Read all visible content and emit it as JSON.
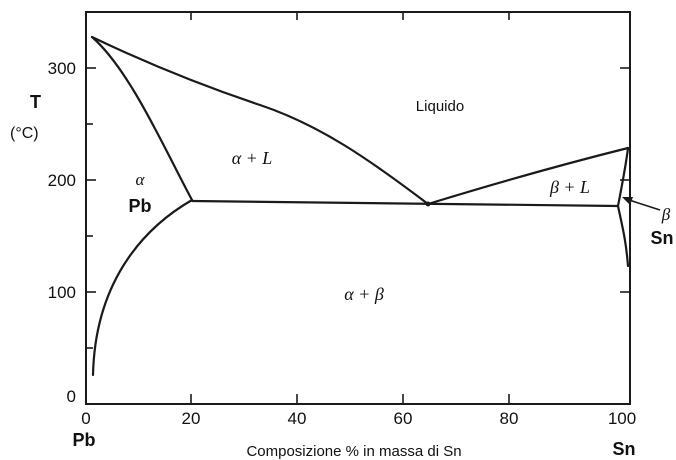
{
  "axes": {
    "y_title": "T",
    "y_unit": "(°C)",
    "x_title": "Composizione % in massa di Sn",
    "y_ticks": [
      "0",
      "100",
      "200",
      "300"
    ],
    "x_ticks": [
      "0",
      "20",
      "40",
      "60",
      "80",
      "100"
    ],
    "left_component": "Pb",
    "right_component": "Sn"
  },
  "regions": {
    "liquid": "Liquido",
    "alpha_liquid": "α + L",
    "beta_liquid": "β + L",
    "alpha_beta": "α + β",
    "alpha": "α",
    "alpha_sub": "Pb",
    "beta": "β",
    "beta_sub": "Sn"
  },
  "chart_data": {
    "type": "phase-diagram",
    "xlabel": "Composizione % in massa di Sn",
    "ylabel": "T (°C)",
    "xlim": [
      0,
      100
    ],
    "ylim": [
      0,
      330
    ],
    "liquidus_left": [
      [
        0,
        327
      ],
      [
        10,
        295
      ],
      [
        20,
        270
      ],
      [
        30,
        250
      ],
      [
        40,
        225
      ],
      [
        50,
        202
      ],
      [
        61.9,
        183
      ]
    ],
    "liquidus_right": [
      [
        61.9,
        183
      ],
      [
        70,
        195
      ],
      [
        80,
        205
      ],
      [
        90,
        217
      ],
      [
        100,
        232
      ]
    ],
    "solidus_alpha": [
      [
        0,
        327
      ],
      [
        5,
        290
      ],
      [
        10,
        250
      ],
      [
        15,
        210
      ],
      [
        18.3,
        183
      ]
    ],
    "solvus_alpha": [
      [
        18.3,
        183
      ],
      [
        15,
        170
      ],
      [
        10,
        140
      ],
      [
        5,
        100
      ],
      [
        2,
        60
      ],
      [
        1,
        15
      ]
    ],
    "eutectic_line": [
      [
        18.3,
        183
      ],
      [
        97.8,
        183
      ]
    ],
    "solidus_beta": [
      [
        97.8,
        183
      ],
      [
        99,
        200
      ],
      [
        100,
        232
      ]
    ],
    "solvus_beta": [
      [
        97.8,
        183
      ],
      [
        98.5,
        160
      ],
      [
        99.2,
        130
      ],
      [
        100,
        110
      ]
    ],
    "eutectic_point": [
      61.9,
      183
    ]
  }
}
